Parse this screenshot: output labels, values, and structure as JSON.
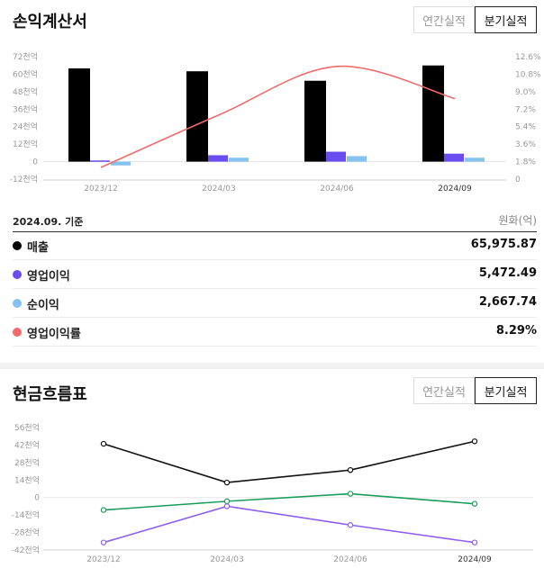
{
  "income": {
    "title": "손익계산서",
    "toggle": {
      "annual": "연간실적",
      "quarterly": "분기실적",
      "selected": "quarterly"
    },
    "chart_data": {
      "type": "bar",
      "categories": [
        "2023/12",
        "2024/03",
        "2024/06",
        "2024/09"
      ],
      "series": [
        {
          "name": "매출",
          "kind": "bar",
          "color": "#000000",
          "values": [
            64000,
            62000,
            55500,
            66000
          ]
        },
        {
          "name": "영업이익",
          "kind": "bar",
          "color": "#6a4cf0",
          "values": [
            800,
            4400,
            6800,
            5472
          ]
        },
        {
          "name": "순이익",
          "kind": "bar",
          "color": "#86c2f0",
          "values": [
            -2600,
            2700,
            3800,
            2668
          ]
        },
        {
          "name": "영업이익률",
          "kind": "line",
          "axis": "right",
          "color": "#f06a6a",
          "values": [
            1.2,
            6.6,
            11.6,
            8.29
          ]
        }
      ],
      "yTicksLeft": [
        "72천억",
        "60천억",
        "48천억",
        "36천억",
        "24천억",
        "12천억",
        "0",
        "-12천억"
      ],
      "yTicksRight": [
        "12.6%",
        "10.8%",
        "9.0%",
        "7.2%",
        "5.4%",
        "3.6%",
        "1.8%",
        "0"
      ],
      "ylim": [
        -12000,
        72000
      ],
      "ylimRight": [
        0,
        12.6
      ]
    }
  },
  "summary": {
    "basis": "2024.09. 기준",
    "unit": "원화(억)",
    "rows": [
      {
        "label": "매출",
        "value": "65,975.87",
        "color": "#000000"
      },
      {
        "label": "영업이익",
        "value": "5,472.49",
        "color": "#6a4cf0"
      },
      {
        "label": "순이익",
        "value": "2,667.74",
        "color": "#86c2f0"
      },
      {
        "label": "영업이익률",
        "value": "8.29%",
        "color": "#f06a6a"
      }
    ]
  },
  "cashflow": {
    "title": "현금흐름표",
    "toggle": {
      "annual": "연간실적",
      "quarterly": "분기실적",
      "selected": "quarterly"
    },
    "chart_data": {
      "type": "line",
      "categories": [
        "2023/12",
        "2024/03",
        "2024/06",
        "2024/09"
      ],
      "series": [
        {
          "color": "#111111",
          "values": [
            43000,
            12000,
            22000,
            45000
          ]
        },
        {
          "color": "#1a9c5a",
          "values": [
            -10000,
            -3000,
            3000,
            -5000
          ]
        },
        {
          "color": "#8e5ff0",
          "values": [
            -36000,
            -7000,
            -22000,
            -36000
          ]
        }
      ],
      "yTicks": [
        "56천억",
        "42천억",
        "28천억",
        "14천억",
        "0",
        "-14천억",
        "-28천억",
        "-42천억"
      ],
      "ylim": [
        -42000,
        56000
      ]
    }
  }
}
